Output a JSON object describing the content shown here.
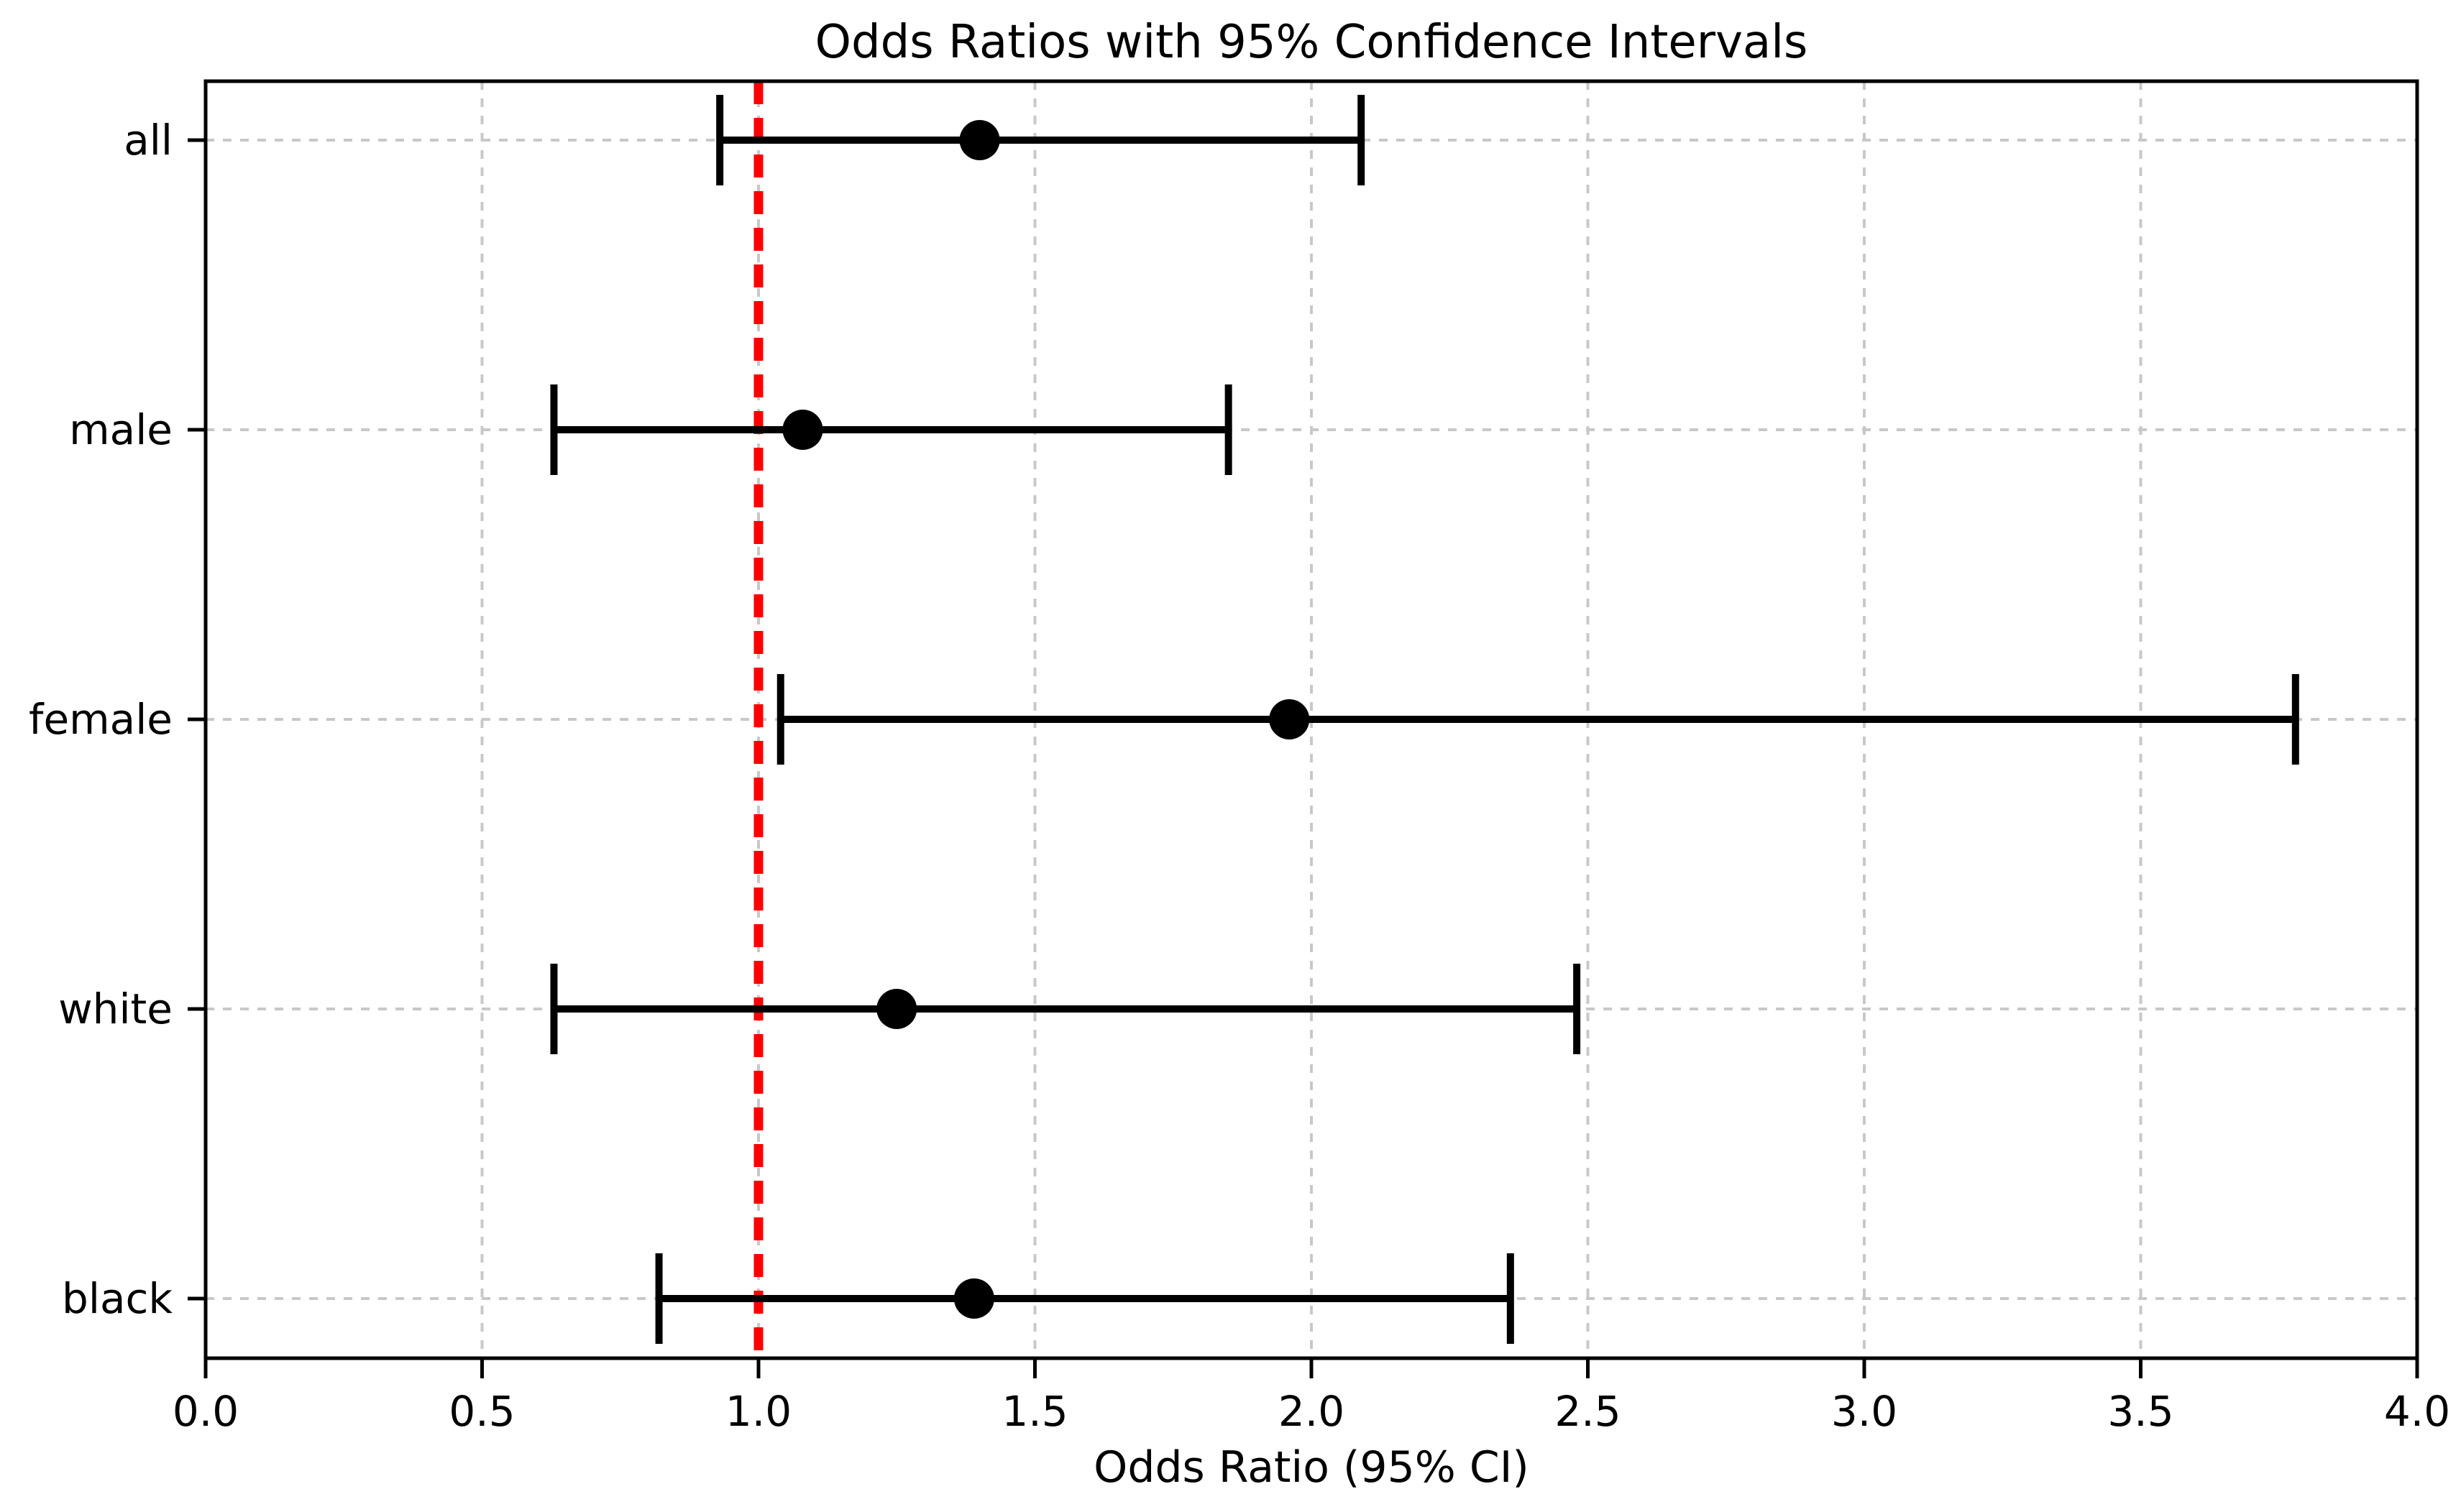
{
  "chart_data": {
    "type": "scatter",
    "variant": "forest-plot-errorbar",
    "title": "Odds Ratios with 95% Confidence Intervals",
    "xlabel": "Odds Ratio (95% CI)",
    "ylabel": "",
    "categories": [
      "all",
      "male",
      "female",
      "white",
      "black"
    ],
    "series": [
      {
        "name": "Odds Ratio (95% CI)",
        "odds_ratio": [
          1.4,
          1.08,
          1.96,
          1.25,
          1.39
        ],
        "ci_low": [
          0.93,
          0.63,
          1.04,
          0.63,
          0.82
        ],
        "ci_high": [
          2.09,
          1.85,
          3.78,
          2.48,
          2.36
        ]
      }
    ],
    "xlim": [
      0.0,
      4.0
    ],
    "xtick_values": [
      0.0,
      0.5,
      1.0,
      1.5,
      2.0,
      2.5,
      3.0,
      3.5,
      4.0
    ],
    "xtick_labels": [
      "0.0",
      "0.5",
      "1.0",
      "1.5",
      "2.0",
      "2.5",
      "3.0",
      "3.5",
      "4.0"
    ],
    "reference_line": {
      "x": 1.0,
      "style": "dashed",
      "color": "#ff0000"
    },
    "grid": {
      "show": true,
      "style": "dashed",
      "color": "#c8c8c8"
    },
    "legend": {
      "show": false
    },
    "colors": {
      "marker": "#000000",
      "error_bar": "#000000",
      "axis": "#000000",
      "background": "#ffffff",
      "grid": "#c8c8c8",
      "reference_line": "#ff0000"
    }
  }
}
